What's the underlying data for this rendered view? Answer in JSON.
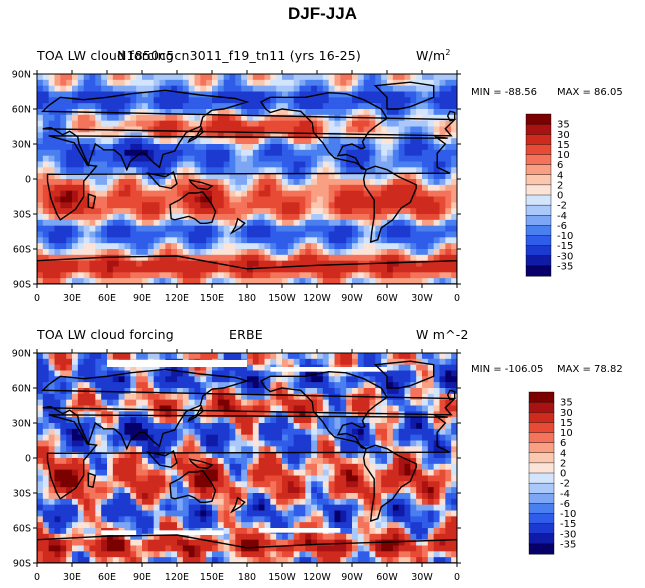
{
  "page_title": "DJF-JJA",
  "colors": {
    "scale": [
      "#08006a",
      "#0f1aa6",
      "#1d3ad0",
      "#2f5ce8",
      "#4a7ff0",
      "#7da6f5",
      "#aac8fa",
      "#d3e5fc",
      "#fbe3d7",
      "#fbc7af",
      "#f9a084",
      "#f4735b",
      "#e84b35",
      "#cf2a1e",
      "#a81212",
      "#7b0000"
    ],
    "coast": "#000000",
    "land_mask": "#ffffff"
  },
  "chart_data": [
    {
      "type": "heatmap",
      "title_left": "TOA LW cloud forcing",
      "title_center": "N1850c5cn3011_f19_tn11 (yrs 16-25)",
      "units": "W/m",
      "units_sup": "2",
      "min_label": "MIN = -88.56",
      "max_label": "MAX =  86.05",
      "min": -88.56,
      "max": 86.05,
      "xlim": [
        0,
        360
      ],
      "ylim": [
        -90,
        90
      ],
      "lon_ticks": [
        "0",
        "30E",
        "60E",
        "90E",
        "120E",
        "150E",
        "180",
        "150W",
        "120W",
        "90W",
        "60W",
        "30W",
        "0"
      ],
      "lat_ticks": [
        "90N",
        "60N",
        "30N",
        "0",
        "30S",
        "60S",
        "90S"
      ],
      "contour_levels": [
        "-35",
        "-30",
        "-15",
        "-10",
        "-6",
        "-4",
        "-2",
        "0",
        "2",
        "4",
        "6",
        "10",
        "15",
        "30",
        "35"
      ]
    },
    {
      "type": "heatmap",
      "title_left": "TOA LW cloud forcing",
      "title_center": "ERBE",
      "units": "W m^-2",
      "min_label": "MIN = -106.05",
      "max_label": "MAX =  78.82",
      "min": -106.05,
      "max": 78.82,
      "xlim": [
        0,
        360
      ],
      "ylim": [
        -90,
        90
      ],
      "lon_ticks": [
        "0",
        "30E",
        "60E",
        "90E",
        "120E",
        "150E",
        "180",
        "150W",
        "120W",
        "90W",
        "60W",
        "30W",
        "0"
      ],
      "lat_ticks": [
        "90N",
        "60N",
        "30N",
        "0",
        "30S",
        "60S",
        "90S"
      ],
      "contour_levels": [
        "-35",
        "-30",
        "-15",
        "-10",
        "-6",
        "-4",
        "-2",
        "0",
        "2",
        "4",
        "6",
        "10",
        "15",
        "30",
        "35"
      ]
    }
  ]
}
